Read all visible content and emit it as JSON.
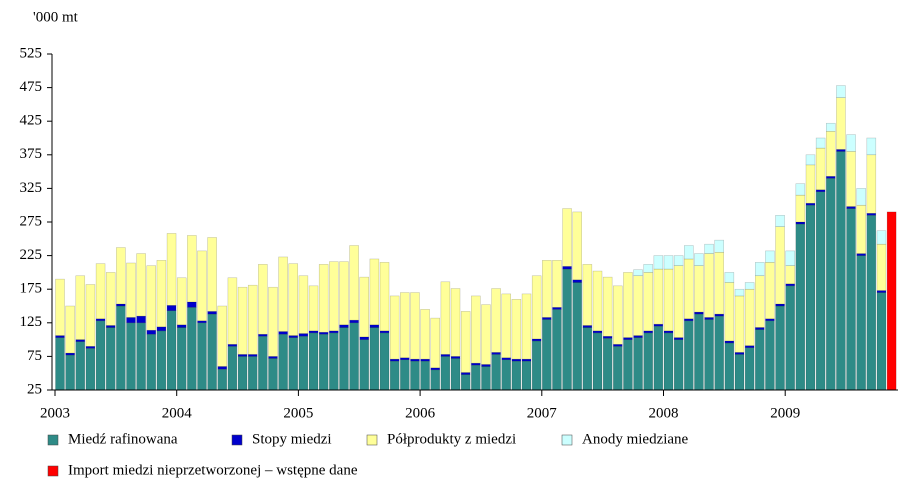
{
  "chart_data": {
    "type": "stacked_bar",
    "y_label": "'000 mt",
    "ylim": [
      25,
      525
    ],
    "yticks": [
      25,
      75,
      125,
      175,
      225,
      275,
      325,
      375,
      425,
      475,
      525
    ],
    "xlim": [
      2003,
      2010
    ],
    "xticks": [
      2003,
      2004,
      2005,
      2006,
      2007,
      2008,
      2009
    ],
    "series": [
      {
        "name": "Miedź rafinowana",
        "color": "#2e8b87",
        "values": [
          103,
          77,
          97,
          87,
          128,
          118,
          150,
          125,
          125,
          108,
          113,
          143,
          118,
          148,
          125,
          138,
          56,
          90,
          75,
          75,
          105,
          72,
          108,
          103,
          105,
          110,
          108,
          110,
          118,
          125,
          100,
          118,
          110,
          68,
          70,
          68,
          68,
          55,
          75,
          72,
          48,
          62,
          60,
          78,
          70,
          68,
          68,
          98,
          130,
          145,
          205,
          185,
          118,
          110,
          102,
          90,
          100,
          103,
          110,
          120,
          110,
          100,
          128,
          138,
          130,
          135,
          95,
          78,
          88,
          115,
          128,
          150,
          180,
          272,
          300,
          320,
          340,
          380,
          295,
          225,
          285,
          170,
          null
        ]
      },
      {
        "name": "Stopy miedzi",
        "color": "#0000cc",
        "values": [
          3,
          3,
          3,
          3,
          3,
          3,
          3,
          8,
          10,
          6,
          6,
          8,
          4,
          8,
          3,
          4,
          4,
          3,
          3,
          3,
          3,
          3,
          4,
          3,
          4,
          3,
          3,
          3,
          4,
          4,
          4,
          4,
          3,
          3,
          3,
          3,
          3,
          3,
          3,
          3,
          3,
          3,
          3,
          3,
          3,
          3,
          3,
          3,
          3,
          3,
          4,
          4,
          3,
          3,
          3,
          3,
          3,
          3,
          3,
          3,
          3,
          3,
          3,
          3,
          3,
          3,
          3,
          3,
          3,
          3,
          3,
          3,
          3,
          3,
          3,
          3,
          3,
          3,
          3,
          3,
          3,
          3,
          null
        ]
      },
      {
        "name": "Półprodukty z miedzi",
        "color": "#ffff99",
        "values": [
          84,
          70,
          95,
          92,
          82,
          79,
          84,
          81,
          93,
          96,
          99,
          107,
          70,
          99,
          104,
          110,
          90,
          99,
          100,
          103,
          104,
          103,
          111,
          107,
          86,
          67,
          101,
          103,
          94,
          111,
          89,
          98,
          102,
          94,
          97,
          99,
          74,
          74,
          108,
          101,
          91,
          100,
          89,
          95,
          95,
          89,
          97,
          94,
          85,
          70,
          86,
          101,
          91,
          89,
          88,
          87,
          97,
          89,
          87,
          82,
          92,
          107,
          89,
          69,
          95,
          92,
          87,
          84,
          84,
          77,
          84,
          115,
          27,
          40,
          57,
          62,
          67,
          77,
          82,
          72,
          87,
          69,
          null
        ]
      },
      {
        "name": "Anody miedziane",
        "color": "#ccffff",
        "values": [
          null,
          null,
          null,
          null,
          null,
          null,
          null,
          null,
          null,
          null,
          null,
          null,
          null,
          null,
          null,
          null,
          null,
          null,
          null,
          null,
          null,
          null,
          null,
          null,
          null,
          null,
          null,
          null,
          null,
          null,
          null,
          null,
          null,
          null,
          null,
          null,
          null,
          null,
          null,
          null,
          null,
          null,
          null,
          null,
          null,
          null,
          null,
          null,
          null,
          null,
          null,
          null,
          null,
          null,
          null,
          null,
          null,
          9,
          12,
          20,
          20,
          15,
          20,
          18,
          14,
          18,
          15,
          10,
          10,
          20,
          17,
          17,
          22,
          17,
          15,
          15,
          12,
          18,
          25,
          25,
          25,
          20,
          null
        ]
      },
      {
        "name": "Import miedzi nieprzetworzonej – wstępne dane",
        "color": "#ff0000",
        "values": [
          null,
          null,
          null,
          null,
          null,
          null,
          null,
          null,
          null,
          null,
          null,
          null,
          null,
          null,
          null,
          null,
          null,
          null,
          null,
          null,
          null,
          null,
          null,
          null,
          null,
          null,
          null,
          null,
          null,
          null,
          null,
          null,
          null,
          null,
          null,
          null,
          null,
          null,
          null,
          null,
          null,
          null,
          null,
          null,
          null,
          null,
          null,
          null,
          null,
          null,
          null,
          null,
          null,
          null,
          null,
          null,
          null,
          null,
          null,
          null,
          null,
          null,
          null,
          null,
          null,
          null,
          null,
          null,
          null,
          null,
          null,
          null,
          null,
          null,
          null,
          null,
          null,
          null,
          null,
          null,
          null,
          null,
          290
        ]
      }
    ]
  }
}
